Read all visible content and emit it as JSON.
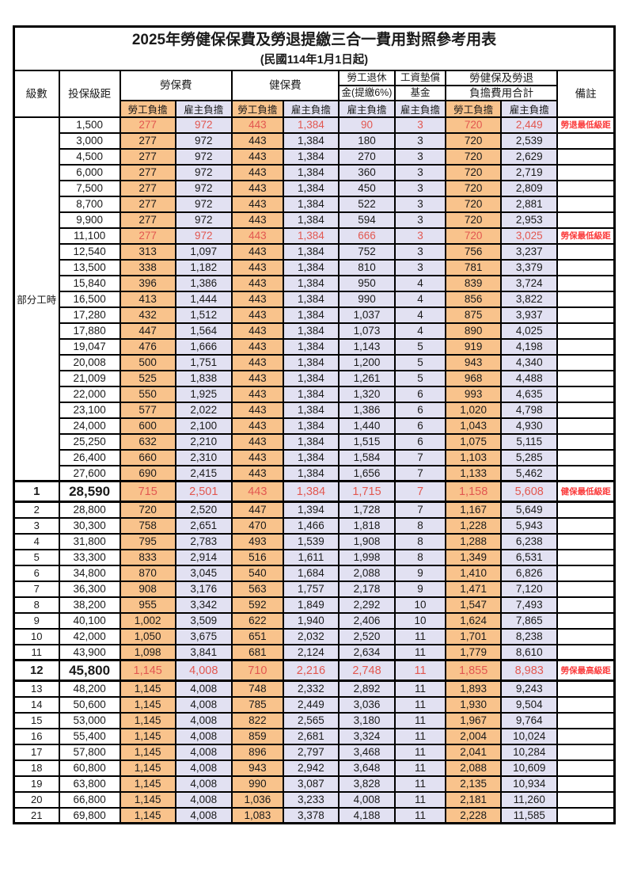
{
  "title": "2025年勞健保保費及勞退提繳三合一費用對照參考用表",
  "subtitle": "(民國114年1月1日起)",
  "colors": {
    "employee_bg": "#F9C38C",
    "employer_bg": "#E2E1F2",
    "highlight_red": "#E25750",
    "note_red": "#FB3B3B"
  },
  "table": {
    "header": {
      "level": "級數",
      "bracket": "投保級距",
      "labor": "勞保費",
      "health": "健保費",
      "pension_1": "勞工退休",
      "pension_2": "金(提繳6%)",
      "fund_1": "工資墊償",
      "fund_2": "基金",
      "total_1": "勞健保及勞退",
      "total_2": "負擔費用合計",
      "remark": "備註",
      "employee_label": "勞工負擔",
      "employer_label": "雇主負擔"
    },
    "part_time_label": "部分工時",
    "part_time_row_span": 23,
    "rows": [
      {
        "level": "",
        "bracket": "1,500",
        "values": [
          "277",
          "972",
          "443",
          "1,384",
          "90",
          "3",
          "720",
          "2,449"
        ],
        "red": true,
        "emphasis": false,
        "note": "勞退最低級距"
      },
      {
        "level": "",
        "bracket": "3,000",
        "values": [
          "277",
          "972",
          "443",
          "1,384",
          "180",
          "3",
          "720",
          "2,539"
        ],
        "red": false,
        "emphasis": false,
        "note": ""
      },
      {
        "level": "",
        "bracket": "4,500",
        "values": [
          "277",
          "972",
          "443",
          "1,384",
          "270",
          "3",
          "720",
          "2,629"
        ],
        "red": false,
        "emphasis": false,
        "note": ""
      },
      {
        "level": "",
        "bracket": "6,000",
        "values": [
          "277",
          "972",
          "443",
          "1,384",
          "360",
          "3",
          "720",
          "2,719"
        ],
        "red": false,
        "emphasis": false,
        "note": ""
      },
      {
        "level": "",
        "bracket": "7,500",
        "values": [
          "277",
          "972",
          "443",
          "1,384",
          "450",
          "3",
          "720",
          "2,809"
        ],
        "red": false,
        "emphasis": false,
        "note": ""
      },
      {
        "level": "",
        "bracket": "8,700",
        "values": [
          "277",
          "972",
          "443",
          "1,384",
          "522",
          "3",
          "720",
          "2,881"
        ],
        "red": false,
        "emphasis": false,
        "note": ""
      },
      {
        "level": "",
        "bracket": "9,900",
        "values": [
          "277",
          "972",
          "443",
          "1,384",
          "594",
          "3",
          "720",
          "2,953"
        ],
        "red": false,
        "emphasis": false,
        "note": ""
      },
      {
        "level": "",
        "bracket": "11,100",
        "values": [
          "277",
          "972",
          "443",
          "1,384",
          "666",
          "3",
          "720",
          "3,025"
        ],
        "red": true,
        "emphasis": false,
        "note": "勞保最低級距"
      },
      {
        "level": "",
        "bracket": "12,540",
        "values": [
          "313",
          "1,097",
          "443",
          "1,384",
          "752",
          "3",
          "756",
          "3,237"
        ],
        "red": false,
        "emphasis": false,
        "note": ""
      },
      {
        "level": "",
        "bracket": "13,500",
        "values": [
          "338",
          "1,182",
          "443",
          "1,384",
          "810",
          "3",
          "781",
          "3,379"
        ],
        "red": false,
        "emphasis": false,
        "note": ""
      },
      {
        "level": "",
        "bracket": "15,840",
        "values": [
          "396",
          "1,386",
          "443",
          "1,384",
          "950",
          "4",
          "839",
          "3,724"
        ],
        "red": false,
        "emphasis": false,
        "note": ""
      },
      {
        "level": "",
        "bracket": "16,500",
        "values": [
          "413",
          "1,444",
          "443",
          "1,384",
          "990",
          "4",
          "856",
          "3,822"
        ],
        "red": false,
        "emphasis": false,
        "note": ""
      },
      {
        "level": "",
        "bracket": "17,280",
        "values": [
          "432",
          "1,512",
          "443",
          "1,384",
          "1,037",
          "4",
          "875",
          "3,937"
        ],
        "red": false,
        "emphasis": false,
        "note": ""
      },
      {
        "level": "",
        "bracket": "17,880",
        "values": [
          "447",
          "1,564",
          "443",
          "1,384",
          "1,073",
          "4",
          "890",
          "4,025"
        ],
        "red": false,
        "emphasis": false,
        "note": ""
      },
      {
        "level": "",
        "bracket": "19,047",
        "values": [
          "476",
          "1,666",
          "443",
          "1,384",
          "1,143",
          "5",
          "919",
          "4,198"
        ],
        "red": false,
        "emphasis": false,
        "note": ""
      },
      {
        "level": "",
        "bracket": "20,008",
        "values": [
          "500",
          "1,751",
          "443",
          "1,384",
          "1,200",
          "5",
          "943",
          "4,340"
        ],
        "red": false,
        "emphasis": false,
        "note": ""
      },
      {
        "level": "",
        "bracket": "21,009",
        "values": [
          "525",
          "1,838",
          "443",
          "1,384",
          "1,261",
          "5",
          "968",
          "4,488"
        ],
        "red": false,
        "emphasis": false,
        "note": ""
      },
      {
        "level": "",
        "bracket": "22,000",
        "values": [
          "550",
          "1,925",
          "443",
          "1,384",
          "1,320",
          "6",
          "993",
          "4,635"
        ],
        "red": false,
        "emphasis": false,
        "note": ""
      },
      {
        "level": "",
        "bracket": "23,100",
        "values": [
          "577",
          "2,022",
          "443",
          "1,384",
          "1,386",
          "6",
          "1,020",
          "4,798"
        ],
        "red": false,
        "emphasis": false,
        "note": ""
      },
      {
        "level": "",
        "bracket": "24,000",
        "values": [
          "600",
          "2,100",
          "443",
          "1,384",
          "1,440",
          "6",
          "1,043",
          "4,930"
        ],
        "red": false,
        "emphasis": false,
        "note": ""
      },
      {
        "level": "",
        "bracket": "25,250",
        "values": [
          "632",
          "2,210",
          "443",
          "1,384",
          "1,515",
          "6",
          "1,075",
          "5,115"
        ],
        "red": false,
        "emphasis": false,
        "note": ""
      },
      {
        "level": "",
        "bracket": "26,400",
        "values": [
          "660",
          "2,310",
          "443",
          "1,384",
          "1,584",
          "7",
          "1,103",
          "5,285"
        ],
        "red": false,
        "emphasis": false,
        "note": ""
      },
      {
        "level": "",
        "bracket": "27,600",
        "values": [
          "690",
          "2,415",
          "443",
          "1,384",
          "1,656",
          "7",
          "1,133",
          "5,462"
        ],
        "red": false,
        "emphasis": false,
        "note": ""
      },
      {
        "level": "1",
        "bracket": "28,590",
        "values": [
          "715",
          "2,501",
          "443",
          "1,384",
          "1,715",
          "7",
          "1,158",
          "5,608"
        ],
        "red": true,
        "emphasis": true,
        "note": "健保最低級距"
      },
      {
        "level": "2",
        "bracket": "28,800",
        "values": [
          "720",
          "2,520",
          "447",
          "1,394",
          "1,728",
          "7",
          "1,167",
          "5,649"
        ],
        "red": false,
        "emphasis": false,
        "note": ""
      },
      {
        "level": "3",
        "bracket": "30,300",
        "values": [
          "758",
          "2,651",
          "470",
          "1,466",
          "1,818",
          "8",
          "1,228",
          "5,943"
        ],
        "red": false,
        "emphasis": false,
        "note": ""
      },
      {
        "level": "4",
        "bracket": "31,800",
        "values": [
          "795",
          "2,783",
          "493",
          "1,539",
          "1,908",
          "8",
          "1,288",
          "6,238"
        ],
        "red": false,
        "emphasis": false,
        "note": ""
      },
      {
        "level": "5",
        "bracket": "33,300",
        "values": [
          "833",
          "2,914",
          "516",
          "1,611",
          "1,998",
          "8",
          "1,349",
          "6,531"
        ],
        "red": false,
        "emphasis": false,
        "note": ""
      },
      {
        "level": "6",
        "bracket": "34,800",
        "values": [
          "870",
          "3,045",
          "540",
          "1,684",
          "2,088",
          "9",
          "1,410",
          "6,826"
        ],
        "red": false,
        "emphasis": false,
        "note": ""
      },
      {
        "level": "7",
        "bracket": "36,300",
        "values": [
          "908",
          "3,176",
          "563",
          "1,757",
          "2,178",
          "9",
          "1,471",
          "7,120"
        ],
        "red": false,
        "emphasis": false,
        "note": ""
      },
      {
        "level": "8",
        "bracket": "38,200",
        "values": [
          "955",
          "3,342",
          "592",
          "1,849",
          "2,292",
          "10",
          "1,547",
          "7,493"
        ],
        "red": false,
        "emphasis": false,
        "note": ""
      },
      {
        "level": "9",
        "bracket": "40,100",
        "values": [
          "1,002",
          "3,509",
          "622",
          "1,940",
          "2,406",
          "10",
          "1,624",
          "7,865"
        ],
        "red": false,
        "emphasis": false,
        "note": ""
      },
      {
        "level": "10",
        "bracket": "42,000",
        "values": [
          "1,050",
          "3,675",
          "651",
          "2,032",
          "2,520",
          "11",
          "1,701",
          "8,238"
        ],
        "red": false,
        "emphasis": false,
        "note": ""
      },
      {
        "level": "11",
        "bracket": "43,900",
        "values": [
          "1,098",
          "3,841",
          "681",
          "2,124",
          "2,634",
          "11",
          "1,779",
          "8,610"
        ],
        "red": false,
        "emphasis": false,
        "note": ""
      },
      {
        "level": "12",
        "bracket": "45,800",
        "values": [
          "1,145",
          "4,008",
          "710",
          "2,216",
          "2,748",
          "11",
          "1,855",
          "8,983"
        ],
        "red": true,
        "emphasis": true,
        "note": "勞保最高級距"
      },
      {
        "level": "13",
        "bracket": "48,200",
        "values": [
          "1,145",
          "4,008",
          "748",
          "2,332",
          "2,892",
          "11",
          "1,893",
          "9,243"
        ],
        "red": false,
        "emphasis": false,
        "note": ""
      },
      {
        "level": "14",
        "bracket": "50,600",
        "values": [
          "1,145",
          "4,008",
          "785",
          "2,449",
          "3,036",
          "11",
          "1,930",
          "9,504"
        ],
        "red": false,
        "emphasis": false,
        "note": ""
      },
      {
        "level": "15",
        "bracket": "53,000",
        "values": [
          "1,145",
          "4,008",
          "822",
          "2,565",
          "3,180",
          "11",
          "1,967",
          "9,764"
        ],
        "red": false,
        "emphasis": false,
        "note": ""
      },
      {
        "level": "16",
        "bracket": "55,400",
        "values": [
          "1,145",
          "4,008",
          "859",
          "2,681",
          "3,324",
          "11",
          "2,004",
          "10,024"
        ],
        "red": false,
        "emphasis": false,
        "note": ""
      },
      {
        "level": "17",
        "bracket": "57,800",
        "values": [
          "1,145",
          "4,008",
          "896",
          "2,797",
          "3,468",
          "11",
          "2,041",
          "10,284"
        ],
        "red": false,
        "emphasis": false,
        "note": ""
      },
      {
        "level": "18",
        "bracket": "60,800",
        "values": [
          "1,145",
          "4,008",
          "943",
          "2,942",
          "3,648",
          "11",
          "2,088",
          "10,609"
        ],
        "red": false,
        "emphasis": false,
        "note": ""
      },
      {
        "level": "19",
        "bracket": "63,800",
        "values": [
          "1,145",
          "4,008",
          "990",
          "3,087",
          "3,828",
          "11",
          "2,135",
          "10,934"
        ],
        "red": false,
        "emphasis": false,
        "note": ""
      },
      {
        "level": "20",
        "bracket": "66,800",
        "values": [
          "1,145",
          "4,008",
          "1,036",
          "3,233",
          "4,008",
          "11",
          "2,181",
          "11,260"
        ],
        "red": false,
        "emphasis": false,
        "note": ""
      },
      {
        "level": "21",
        "bracket": "69,800",
        "values": [
          "1,145",
          "4,008",
          "1,083",
          "3,378",
          "4,188",
          "11",
          "2,228",
          "11,585"
        ],
        "red": false,
        "emphasis": false,
        "note": ""
      }
    ]
  }
}
